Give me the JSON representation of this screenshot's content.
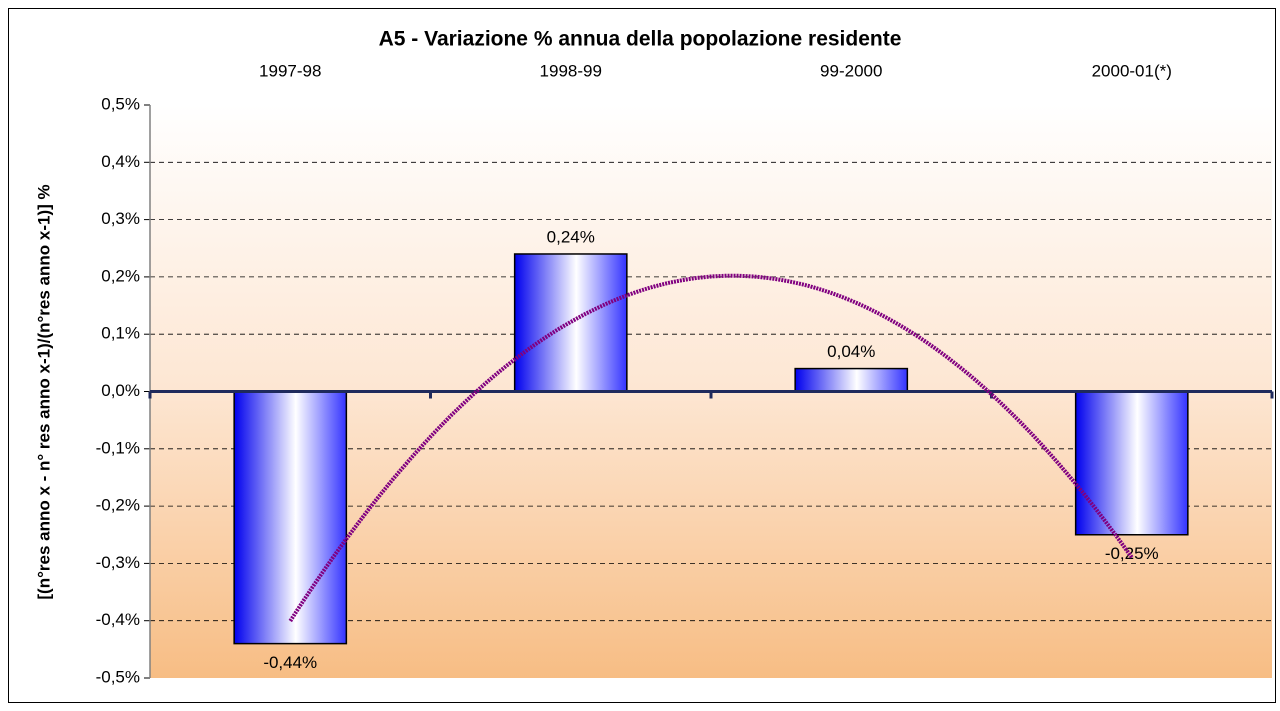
{
  "chart_data": {
    "type": "bar",
    "title": "A5 - Variazione % annua della popolazione residente",
    "y_label": "[(n°res anno x - n° res anno x-1)/(n°res anno x-1)] %",
    "categories": [
      "1997-98",
      "1998-99",
      "99-2000",
      "2000-01(*)"
    ],
    "values": [
      -0.44,
      0.24,
      0.04,
      -0.25
    ],
    "value_labels": [
      "-0,44%",
      "0,24%",
      "0,04%",
      "-0,25%"
    ],
    "color": "#0000ff",
    "ylim": [
      -0.5,
      0.5
    ],
    "yticks": [
      {
        "value": -0.5,
        "label": "-0,5%"
      },
      {
        "value": -0.4,
        "label": "-0,4%"
      },
      {
        "value": -0.3,
        "label": "-0,3%"
      },
      {
        "value": -0.2,
        "label": "-0,2%"
      },
      {
        "value": -0.1,
        "label": "-0,1%"
      },
      {
        "value": 0,
        "label": "0,0%"
      },
      {
        "value": 0.1,
        "label": "0,1%"
      },
      {
        "value": 0.2,
        "label": "0,2%"
      },
      {
        "value": 0.3,
        "label": "0,3%"
      },
      {
        "value": 0.4,
        "label": "0,4%"
      },
      {
        "value": 0.5,
        "label": "0,5%"
      }
    ],
    "grid": true,
    "trendline": {
      "type": "polynomial",
      "order": 2,
      "color": "#800080"
    }
  }
}
